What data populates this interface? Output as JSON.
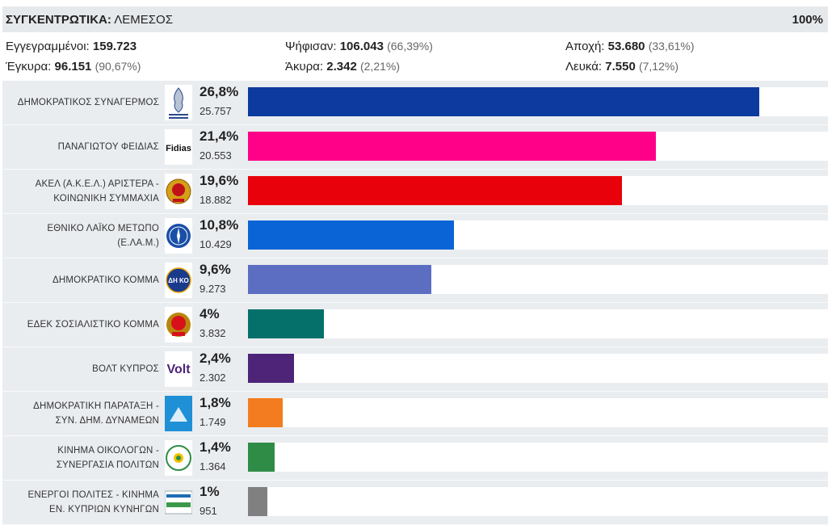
{
  "header": {
    "title": "ΣΥΓΚΕΝΤΡΩΤΙΚΑ:",
    "location": "ΛΕΜΕΣΟΣ",
    "counted_pct": "100%"
  },
  "stats": {
    "registered": {
      "label": "Εγγεγραμμένοι:",
      "value": "159.723"
    },
    "voted": {
      "label": "Ψήφισαν:",
      "value": "106.043",
      "pct": "(66,39%)"
    },
    "abstention": {
      "label": "Αποχή:",
      "value": "53.680",
      "pct": "(33,61%)"
    },
    "valid": {
      "label": "Έγκυρα:",
      "value": "96.151",
      "pct": "(90,67%)"
    },
    "invalid": {
      "label": "Άκυρα:",
      "value": "2.342",
      "pct": "(2,21%)"
    },
    "blank": {
      "label": "Λευκά:",
      "value": "7.550",
      "pct": "(7,12%)"
    }
  },
  "chart_data": {
    "type": "bar",
    "orientation": "horizontal",
    "categories": [
      "ΔΗΜΟΚΡΑΤΙΚΟΣ ΣΥΝΑΓΕΡΜΟΣ",
      "ΠΑΝΑΓΙΩΤΟΥ ΦΕΙΔΙΑΣ",
      "ΑΚΕΛ (Α.Κ.Ε.Λ.) ΑΡΙΣΤΕΡΑ - ΚΟΙΝΩΝΙΚΗ ΣΥΜΜΑΧΙΑ",
      "ΕΘΝΙΚΟ ΛΑΪΚΟ ΜΕΤΩΠΟ (Ε.ΛΑ.Μ.)",
      "ΔΗΜΟΚΡΑΤΙΚΟ ΚΟΜΜΑ",
      "ΕΔΕΚ ΣΟΣΙΑΛΙΣΤΙΚΟ ΚΟΜΜΑ",
      "ΒΟΛΤ ΚΥΠΡΟΣ",
      "ΔΗΜΟΚΡΑΤΙΚΗ ΠΑΡΑΤΑΞΗ - ΣΥΝ. ΔΗΜ. ΔΥΝΑΜΕΩΝ",
      "ΚΙΝΗΜΑ ΟΙΚΟΛΟΓΩΝ - ΣΥΝΕΡΓΑΣΙΑ ΠΟΛΙΤΩΝ",
      "ΕΝΕΡΓΟΙ ΠΟΛΙΤΕΣ - ΚΙΝΗΜΑ ΕΝ. ΚΥΠΡΙΩΝ ΚΥΝΗΓΩΝ"
    ],
    "name_lines": [
      [
        "ΔΗΜΟΚΡΑΤΙΚΟΣ ΣΥΝΑΓΕΡΜΟΣ"
      ],
      [
        "ΠΑΝΑΓΙΩΤΟΥ ΦΕΙΔΙΑΣ"
      ],
      [
        "ΑΚΕΛ (Α.Κ.Ε.Λ.) ΑΡΙΣΤΕΡΑ -",
        "ΚΟΙΝΩΝΙΚΗ ΣΥΜΜΑΧΙΑ"
      ],
      [
        "ΕΘΝΙΚΟ ΛΑΪΚΟ ΜΕΤΩΠΟ",
        "(Ε.ΛΑ.Μ.)"
      ],
      [
        "ΔΗΜΟΚΡΑΤΙΚΟ ΚΟΜΜΑ"
      ],
      [
        "ΕΔΕΚ ΣΟΣΙΑΛΙΣΤΙΚΟ ΚΟΜΜΑ"
      ],
      [
        "ΒΟΛΤ ΚΥΠΡΟΣ"
      ],
      [
        "ΔΗΜΟΚΡΑΤΙΚΗ ΠΑΡΑΤΑΞΗ -",
        "ΣΥΝ. ΔΗΜ. ΔΥΝΑΜΕΩΝ"
      ],
      [
        "ΚΙΝΗΜΑ ΟΙΚΟΛΟΓΩΝ -",
        "ΣΥΝΕΡΓΑΣΙΑ ΠΟΛΙΤΩΝ"
      ],
      [
        "ΕΝΕΡΓΟΙ ΠΟΛΙΤΕΣ - ΚΙΝΗΜΑ",
        "ΕΝ. ΚΥΠΡΙΩΝ ΚΥΝΗΓΩΝ"
      ]
    ],
    "values": [
      26.8,
      21.4,
      19.6,
      10.8,
      9.6,
      4,
      2.4,
      1.8,
      1.4,
      1
    ],
    "pct_labels": [
      "26,8%",
      "21,4%",
      "19,6%",
      "10,8%",
      "9,6%",
      "4%",
      "2,4%",
      "1,8%",
      "1,4%",
      "1%"
    ],
    "votes": [
      "25.757",
      "20.553",
      "18.882",
      "10.429",
      "9.273",
      "3.832",
      "2.302",
      "1.749",
      "1.364",
      "951"
    ],
    "colors": [
      "#0d3a9e",
      "#ff0089",
      "#e8000b",
      "#0a64d6",
      "#5b6ec2",
      "#05706a",
      "#4d2478",
      "#f47c20",
      "#2e8c46",
      "#808080"
    ],
    "logos": [
      "disy-logo-icon",
      "fidias-logo-icon",
      "akel-logo-icon",
      "elam-logo-icon",
      "diko-logo-icon",
      "edek-logo-icon",
      "volt-logo-icon",
      "dipa-logo-icon",
      "ecologists-logo-icon",
      "energoi-polites-logo-icon"
    ],
    "logo_texts": [
      "",
      "Fidias",
      "",
      "",
      "ΔΗ ΚΟ",
      "",
      "Volt",
      "",
      "",
      ""
    ],
    "xlim": [
      0,
      30
    ]
  }
}
